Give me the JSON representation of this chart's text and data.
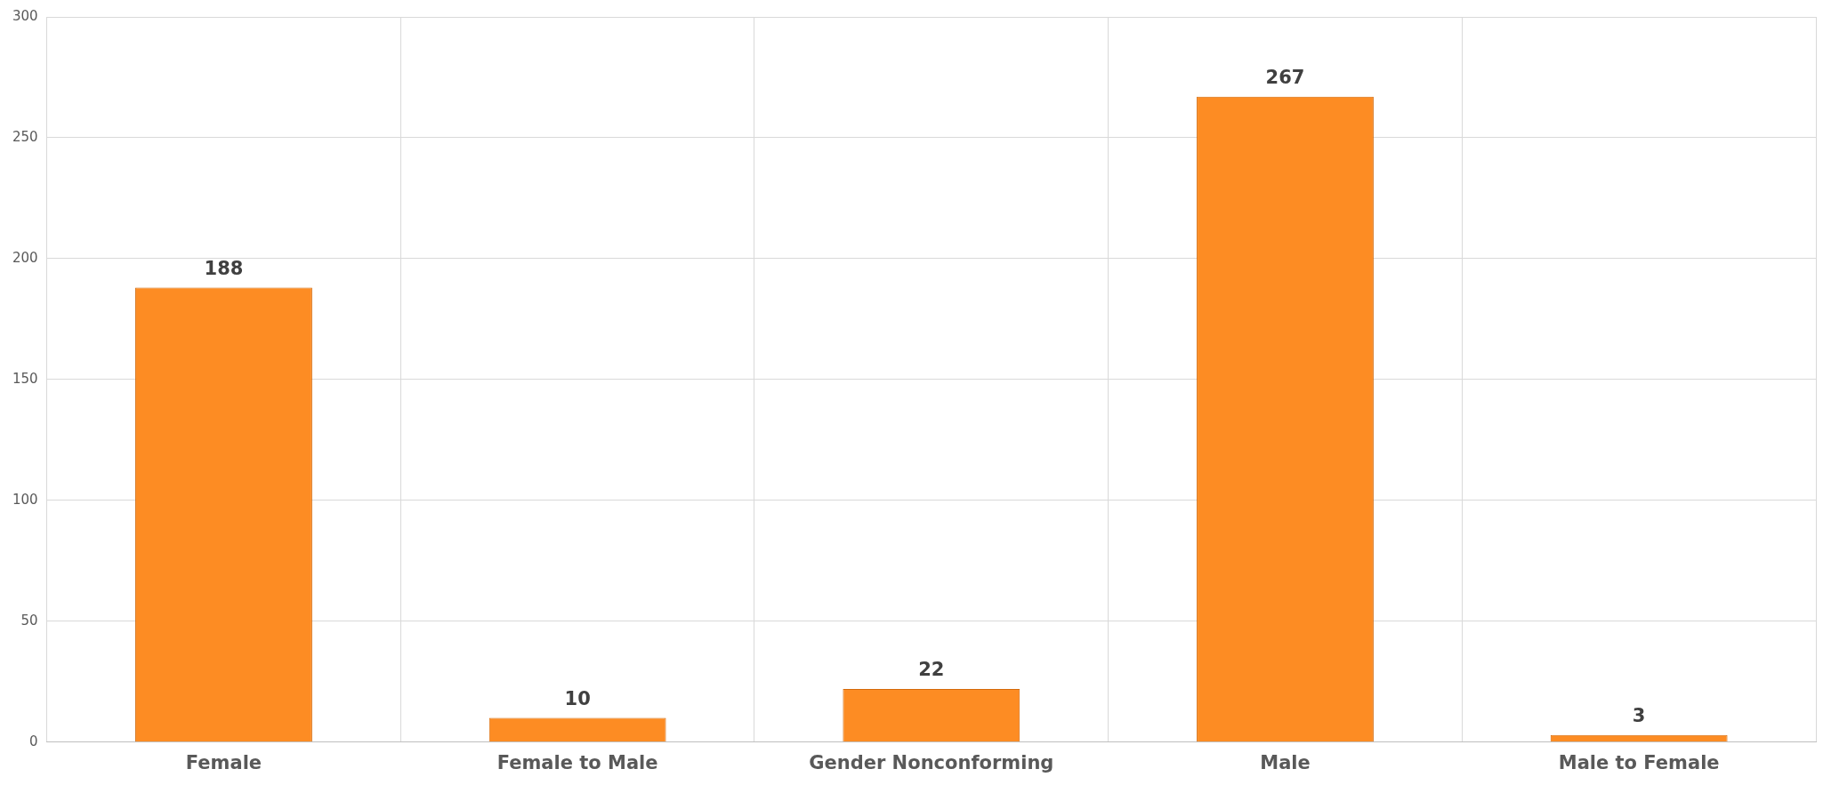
{
  "chart_data": {
    "type": "bar",
    "categories": [
      "Female",
      "Female to Male",
      "Gender Nonconforming",
      "Male",
      "Male to Female"
    ],
    "values": [
      188,
      10,
      22,
      267,
      3
    ],
    "color": "#fd8c23",
    "ylim": [
      0,
      300
    ],
    "yticks": [
      0,
      50,
      100,
      150,
      200,
      250,
      300
    ],
    "grid": true,
    "data_labels": true
  }
}
